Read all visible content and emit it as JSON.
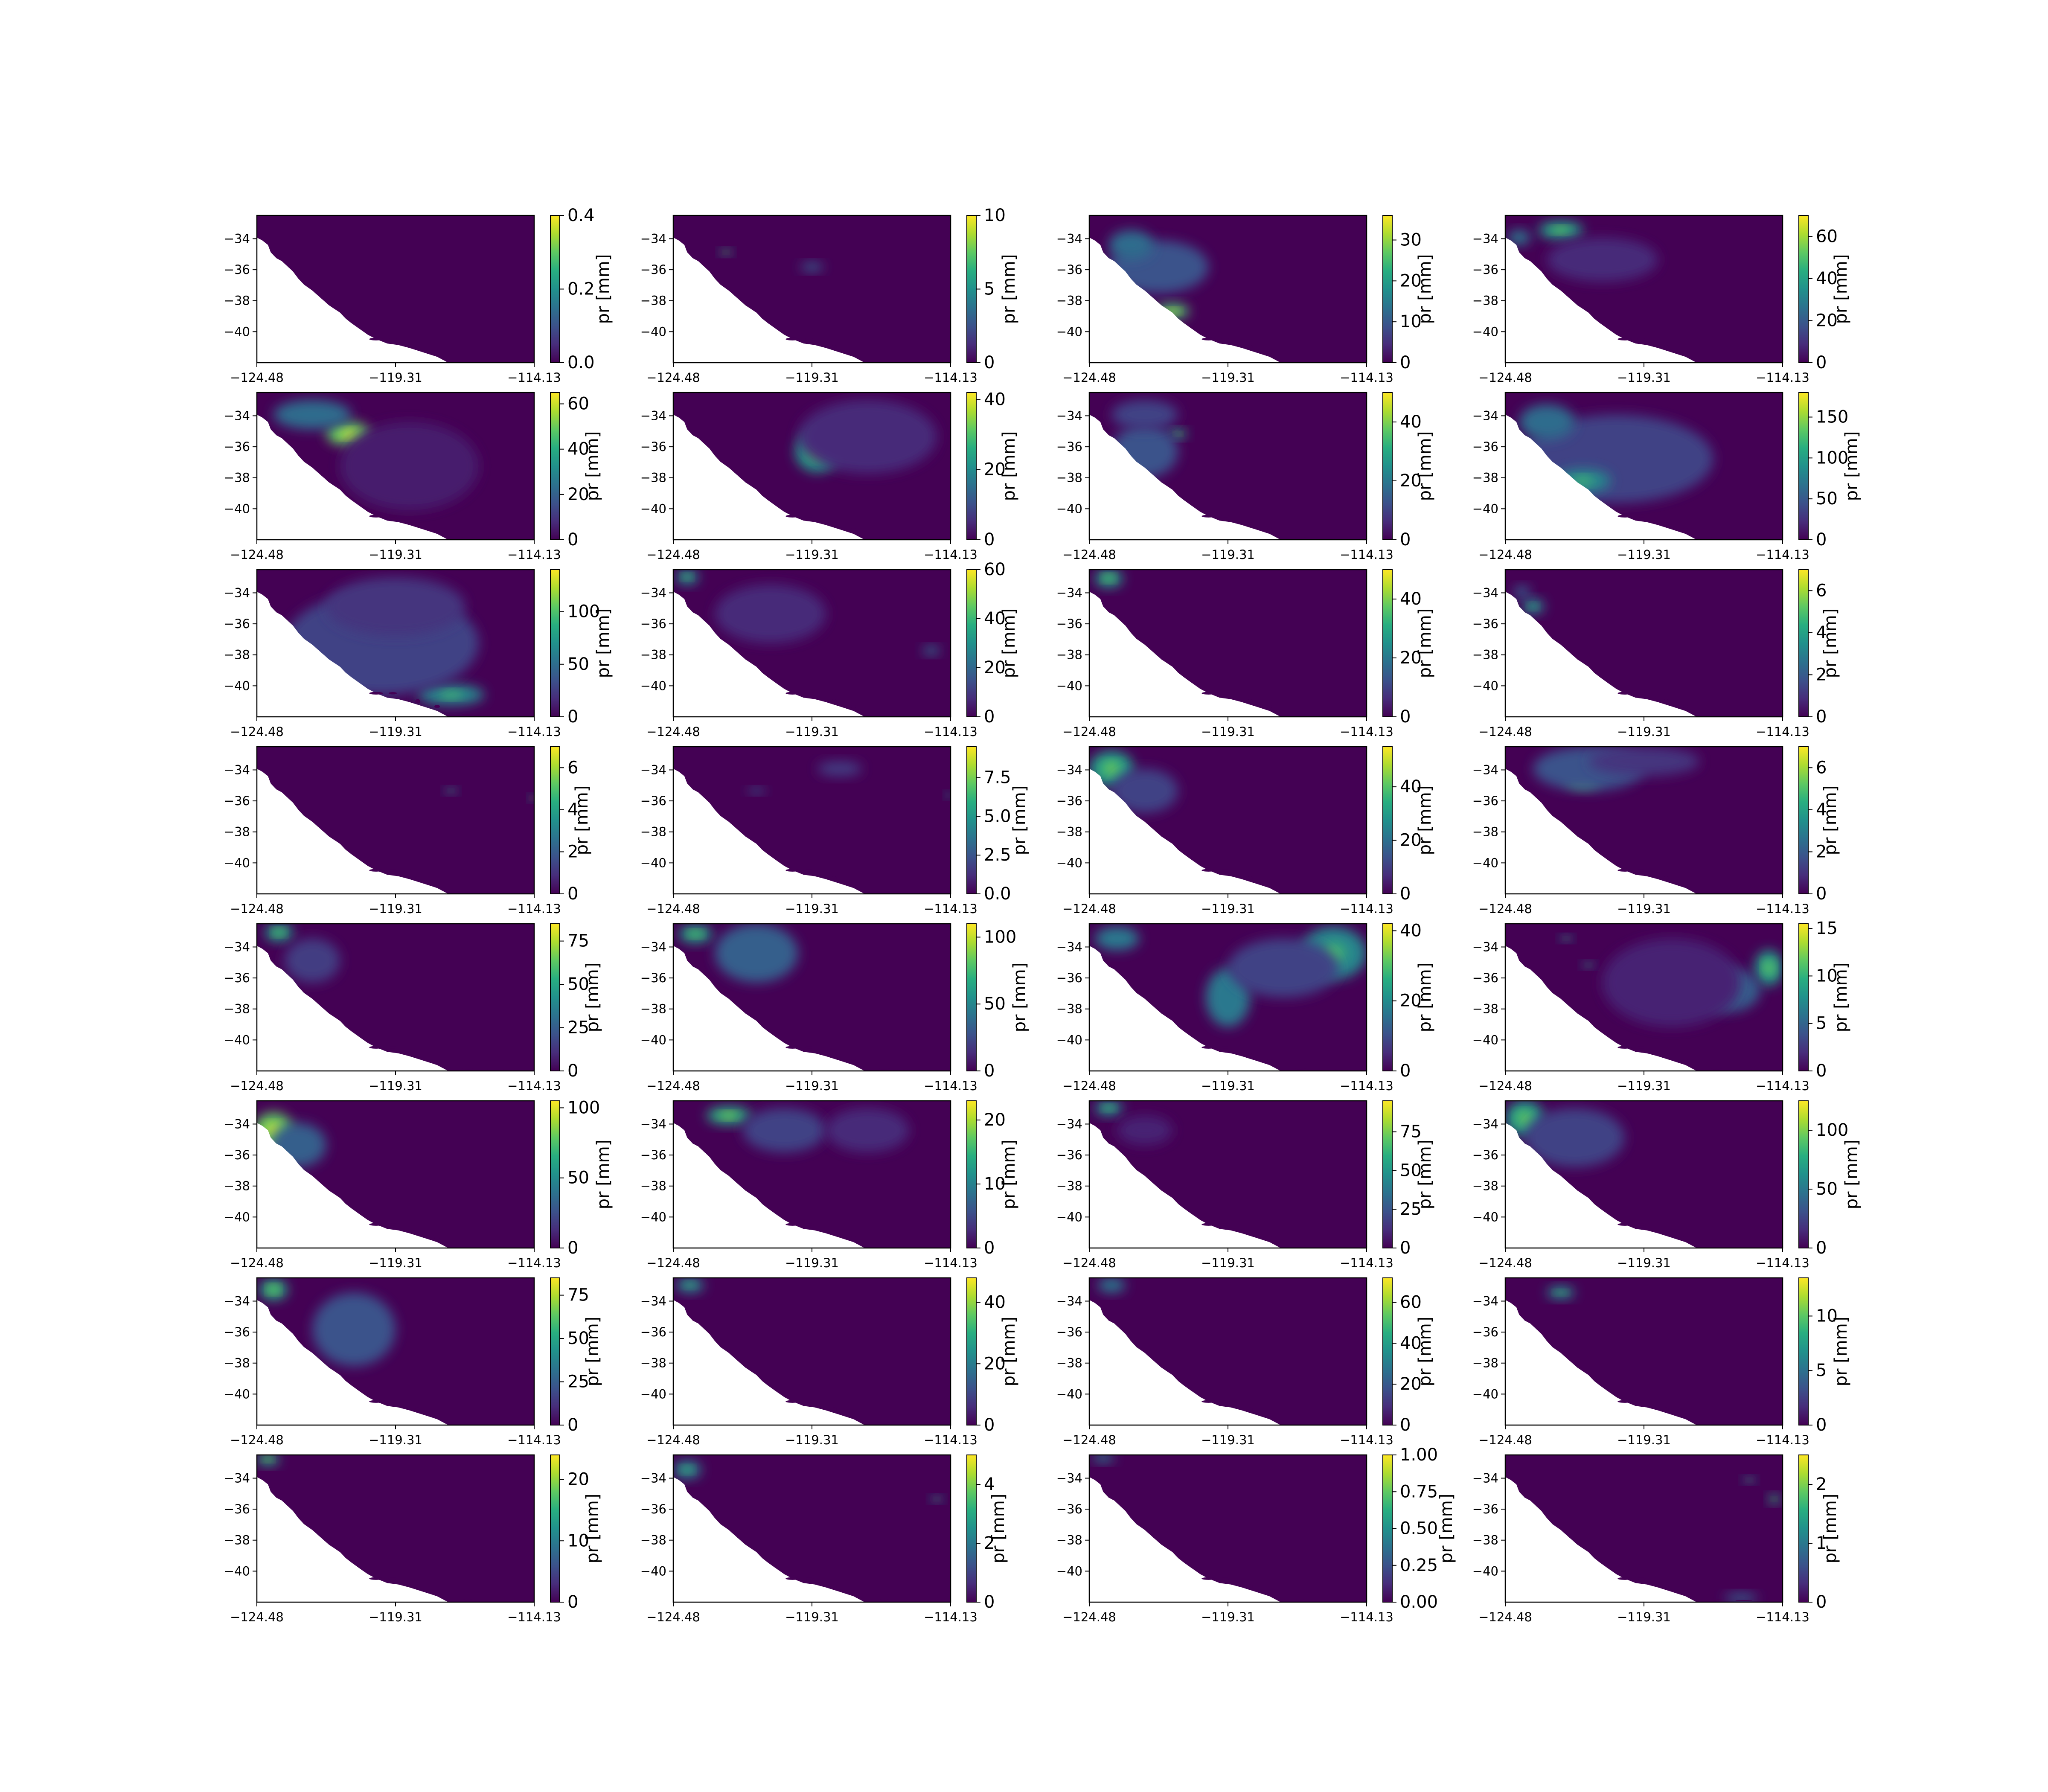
{
  "figure": {
    "colormap": "viridis",
    "background": "#ffffff",
    "land_bg": "#440154",
    "ocean": "#ffffff"
  },
  "chart_data": {
    "type": "heatmap",
    "panel_count": 32,
    "grid": {
      "rows": 8,
      "cols": 4
    },
    "x_ticks": [
      "−124.48",
      "−119.31",
      "−114.13"
    ],
    "y_ticks": [
      "−34",
      "−36",
      "−38",
      "−40"
    ],
    "colorbar_label": "pr [mm]",
    "xlim": [
      -124.48,
      -114.13
    ],
    "ylim": [
      -42,
      -32.5
    ],
    "panels": [
      {
        "cmax": 0.4,
        "ticks": [
          "0.0",
          "0.2",
          "0.4"
        ],
        "tick_values": [
          0,
          0.2,
          0.4
        ],
        "blobs": []
      },
      {
        "cmax": 10,
        "ticks": [
          "0",
          "5",
          "10"
        ],
        "tick_values": [
          0,
          5,
          10
        ],
        "blobs": [
          [
            0.19,
            0.25,
            0.02,
            0.02,
            0.6
          ],
          [
            0.5,
            0.35,
            0.04,
            0.03,
            0.3
          ]
        ]
      },
      {
        "cmax": 36,
        "ticks": [
          "0",
          "10",
          "20",
          "30"
        ],
        "tick_values": [
          0,
          10,
          20,
          30
        ],
        "blobs": [
          [
            0.25,
            0.35,
            0.18,
            0.18,
            0.25
          ],
          [
            0.3,
            0.65,
            0.06,
            0.05,
            0.7
          ],
          [
            0.15,
            0.2,
            0.08,
            0.1,
            0.35
          ]
        ]
      },
      {
        "cmax": 70,
        "ticks": [
          "0",
          "20",
          "40",
          "60"
        ],
        "tick_values": [
          0,
          20,
          40,
          60
        ],
        "blobs": [
          [
            0.2,
            0.1,
            0.08,
            0.06,
            0.55
          ],
          [
            0.05,
            0.15,
            0.04,
            0.05,
            0.4
          ],
          [
            0.35,
            0.3,
            0.2,
            0.15,
            0.12
          ]
        ]
      },
      {
        "cmax": 65,
        "ticks": [
          "0",
          "20",
          "40",
          "60"
        ],
        "tick_values": [
          0,
          20,
          40,
          60
        ],
        "blobs": [
          [
            0.33,
            0.28,
            0.08,
            0.08,
            0.75
          ],
          [
            0.2,
            0.15,
            0.14,
            0.1,
            0.35
          ],
          [
            0.55,
            0.5,
            0.25,
            0.3,
            0.08
          ]
        ]
      },
      {
        "cmax": 42,
        "ticks": [
          "0",
          "20",
          "40"
        ],
        "tick_values": [
          0,
          20,
          40
        ],
        "blobs": [
          [
            0.52,
            0.4,
            0.08,
            0.14,
            0.55
          ],
          [
            0.7,
            0.3,
            0.25,
            0.25,
            0.12
          ]
        ]
      },
      {
        "cmax": 50,
        "ticks": [
          "0",
          "20",
          "40"
        ],
        "tick_values": [
          0,
          20,
          40
        ],
        "blobs": [
          [
            0.32,
            0.28,
            0.03,
            0.03,
            0.6
          ],
          [
            0.2,
            0.4,
            0.12,
            0.18,
            0.25
          ],
          [
            0.2,
            0.15,
            0.12,
            0.1,
            0.2
          ]
        ]
      },
      {
        "cmax": 180,
        "ticks": [
          "0",
          "50",
          "100",
          "150"
        ],
        "tick_values": [
          0,
          50,
          100,
          150
        ],
        "blobs": [
          [
            0.4,
            0.45,
            0.35,
            0.3,
            0.2
          ],
          [
            0.28,
            0.6,
            0.1,
            0.08,
            0.45
          ],
          [
            0.15,
            0.2,
            0.1,
            0.12,
            0.35
          ]
        ]
      },
      {
        "cmax": 140,
        "ticks": [
          "0",
          "50",
          "100"
        ],
        "tick_values": [
          0,
          50,
          100
        ],
        "blobs": [
          [
            0.7,
            0.85,
            0.12,
            0.07,
            0.45
          ],
          [
            0.45,
            0.5,
            0.35,
            0.35,
            0.2
          ],
          [
            0.5,
            0.25,
            0.25,
            0.2,
            0.15
          ]
        ]
      },
      {
        "cmax": 60,
        "ticks": [
          "0",
          "20",
          "40",
          "60"
        ],
        "tick_values": [
          0,
          20,
          40,
          60
        ],
        "blobs": [
          [
            0.05,
            0.05,
            0.04,
            0.05,
            0.5
          ],
          [
            0.35,
            0.3,
            0.2,
            0.2,
            0.12
          ],
          [
            0.93,
            0.55,
            0.03,
            0.03,
            0.35
          ]
        ]
      },
      {
        "cmax": 50,
        "ticks": [
          "0",
          "20",
          "40"
        ],
        "tick_values": [
          0,
          20,
          40
        ],
        "blobs": [
          [
            0.07,
            0.06,
            0.05,
            0.06,
            0.55
          ]
        ]
      },
      {
        "cmax": 7,
        "ticks": [
          "0",
          "2",
          "4",
          "6"
        ],
        "tick_values": [
          0,
          2,
          4,
          6
        ],
        "blobs": [
          [
            0.1,
            0.25,
            0.04,
            0.05,
            0.45
          ],
          [
            0.06,
            0.15,
            0.03,
            0.04,
            0.3
          ]
        ]
      },
      {
        "cmax": 7,
        "ticks": [
          "0",
          "2",
          "4",
          "6"
        ],
        "tick_values": [
          0,
          2,
          4,
          6
        ],
        "blobs": [
          [
            0.7,
            0.3,
            0.02,
            0.02,
            0.45
          ],
          [
            0.99,
            0.35,
            0.01,
            0.02,
            0.6
          ]
        ]
      },
      {
        "cmax": 9.5,
        "ticks": [
          "0.0",
          "2.5",
          "5.0",
          "7.5"
        ],
        "tick_values": [
          0,
          2.5,
          5,
          7.5
        ],
        "blobs": [
          [
            0.6,
            0.15,
            0.08,
            0.05,
            0.18
          ],
          [
            0.3,
            0.3,
            0.03,
            0.02,
            0.3
          ],
          [
            0.99,
            0.33,
            0.01,
            0.02,
            0.5
          ]
        ]
      },
      {
        "cmax": 55,
        "ticks": [
          "0",
          "20",
          "40"
        ],
        "tick_values": [
          0,
          20,
          40
        ],
        "blobs": [
          [
            0.08,
            0.15,
            0.08,
            0.12,
            0.55
          ],
          [
            0.2,
            0.3,
            0.12,
            0.15,
            0.2
          ]
        ]
      },
      {
        "cmax": 7,
        "ticks": [
          "0",
          "2",
          "4",
          "6"
        ],
        "tick_values": [
          0,
          2,
          4,
          6
        ],
        "blobs": [
          [
            0.28,
            0.22,
            0.06,
            0.06,
            0.7
          ],
          [
            0.3,
            0.15,
            0.2,
            0.15,
            0.25
          ],
          [
            0.5,
            0.1,
            0.2,
            0.1,
            0.15
          ]
        ]
      },
      {
        "cmax": 85,
        "ticks": [
          "0",
          "25",
          "50",
          "75"
        ],
        "tick_values": [
          0,
          25,
          50,
          75
        ],
        "blobs": [
          [
            0.08,
            0.06,
            0.05,
            0.06,
            0.55
          ],
          [
            0.2,
            0.25,
            0.1,
            0.15,
            0.18
          ]
        ]
      },
      {
        "cmax": 110,
        "ticks": [
          "0",
          "50",
          "100"
        ],
        "tick_values": [
          0,
          50,
          100
        ],
        "blobs": [
          [
            0.08,
            0.07,
            0.06,
            0.06,
            0.55
          ],
          [
            0.3,
            0.2,
            0.15,
            0.2,
            0.3
          ]
        ]
      },
      {
        "cmax": 42,
        "ticks": [
          "0",
          "20",
          "40"
        ],
        "tick_values": [
          0,
          20,
          40
        ],
        "blobs": [
          [
            0.5,
            0.5,
            0.08,
            0.2,
            0.4
          ],
          [
            0.88,
            0.2,
            0.12,
            0.18,
            0.45
          ],
          [
            0.1,
            0.1,
            0.08,
            0.08,
            0.4
          ],
          [
            0.7,
            0.3,
            0.2,
            0.2,
            0.2
          ]
        ]
      },
      {
        "cmax": 15.5,
        "ticks": [
          "0",
          "5",
          "10",
          "15"
        ],
        "tick_values": [
          0,
          5,
          10,
          15
        ],
        "blobs": [
          [
            0.95,
            0.3,
            0.05,
            0.12,
            0.55
          ],
          [
            0.8,
            0.45,
            0.12,
            0.15,
            0.3
          ],
          [
            0.22,
            0.1,
            0.02,
            0.02,
            0.5
          ],
          [
            0.3,
            0.28,
            0.02,
            0.02,
            0.45
          ],
          [
            0.6,
            0.4,
            0.25,
            0.3,
            0.1
          ]
        ]
      },
      {
        "cmax": 105,
        "ticks": [
          "0",
          "50",
          "100"
        ],
        "tick_values": [
          0,
          50,
          100
        ],
        "blobs": [
          [
            0.06,
            0.2,
            0.07,
            0.12,
            0.75
          ],
          [
            0.15,
            0.3,
            0.1,
            0.15,
            0.3
          ]
        ]
      },
      {
        "cmax": 23,
        "ticks": [
          "0",
          "10",
          "20"
        ],
        "tick_values": [
          0,
          10,
          20
        ],
        "blobs": [
          [
            0.2,
            0.1,
            0.08,
            0.06,
            0.6
          ],
          [
            0.4,
            0.2,
            0.15,
            0.15,
            0.2
          ],
          [
            0.7,
            0.2,
            0.15,
            0.15,
            0.12
          ]
        ]
      },
      {
        "cmax": 95,
        "ticks": [
          "0",
          "25",
          "50",
          "75"
        ],
        "tick_values": [
          0,
          25,
          50,
          75
        ],
        "blobs": [
          [
            0.07,
            0.05,
            0.05,
            0.05,
            0.5
          ],
          [
            0.2,
            0.2,
            0.1,
            0.1,
            0.1
          ]
        ]
      },
      {
        "cmax": 125,
        "ticks": [
          "0",
          "50",
          "100"
        ],
        "tick_values": [
          0,
          50,
          100
        ],
        "blobs": [
          [
            0.07,
            0.12,
            0.07,
            0.12,
            0.55
          ],
          [
            0.25,
            0.25,
            0.18,
            0.2,
            0.2
          ]
        ]
      },
      {
        "cmax": 85,
        "ticks": [
          "0",
          "25",
          "50",
          "75"
        ],
        "tick_values": [
          0,
          25,
          50,
          75
        ],
        "blobs": [
          [
            0.06,
            0.08,
            0.05,
            0.07,
            0.6
          ],
          [
            0.35,
            0.35,
            0.15,
            0.25,
            0.25
          ]
        ]
      },
      {
        "cmax": 48,
        "ticks": [
          "0",
          "20",
          "40"
        ],
        "tick_values": [
          0,
          20,
          40
        ],
        "blobs": [
          [
            0.06,
            0.05,
            0.05,
            0.05,
            0.45
          ]
        ]
      },
      {
        "cmax": 72,
        "ticks": [
          "0",
          "20",
          "40",
          "60"
        ],
        "tick_values": [
          0,
          20,
          40,
          60
        ],
        "blobs": [
          [
            0.08,
            0.05,
            0.05,
            0.05,
            0.4
          ]
        ]
      },
      {
        "cmax": 13.5,
        "ticks": [
          "0",
          "5",
          "10"
        ],
        "tick_values": [
          0,
          5,
          10
        ],
        "blobs": [
          [
            0.2,
            0.1,
            0.05,
            0.04,
            0.5
          ]
        ]
      },
      {
        "cmax": 24,
        "ticks": [
          "0",
          "10",
          "20"
        ],
        "tick_values": [
          0,
          10,
          20
        ],
        "blobs": [
          [
            0.04,
            0.03,
            0.04,
            0.04,
            0.6
          ]
        ]
      },
      {
        "cmax": 5,
        "ticks": [
          "0",
          "2",
          "4"
        ],
        "tick_values": [
          0,
          2,
          4
        ],
        "blobs": [
          [
            0.05,
            0.1,
            0.05,
            0.06,
            0.45
          ],
          [
            0.95,
            0.3,
            0.02,
            0.02,
            0.5
          ]
        ]
      },
      {
        "cmax": 1.0,
        "ticks": [
          "0.00",
          "0.25",
          "0.50",
          "0.75",
          "1.00"
        ],
        "tick_values": [
          0,
          0.25,
          0.5,
          0.75,
          1
        ],
        "blobs": [
          [
            0.05,
            0.02,
            0.04,
            0.03,
            0.4
          ]
        ]
      },
      {
        "cmax": 2.5,
        "ticks": [
          "0",
          "1",
          "2"
        ],
        "tick_values": [
          0,
          1,
          2
        ],
        "blobs": [
          [
            0.97,
            0.3,
            0.02,
            0.03,
            0.6
          ],
          [
            0.88,
            0.17,
            0.02,
            0.02,
            0.5
          ],
          [
            0.85,
            0.97,
            0.06,
            0.03,
            0.3
          ]
        ]
      }
    ]
  }
}
